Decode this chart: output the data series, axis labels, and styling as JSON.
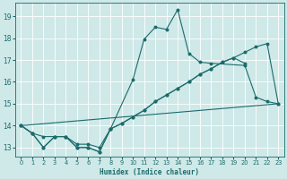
{
  "background_color": "#cfe8e8",
  "grid_color": "#ffffff",
  "line_color": "#1a6b6b",
  "xlabel": "Humidex (Indice chaleur)",
  "yticks": [
    13,
    14,
    15,
    16,
    17,
    18,
    19
  ],
  "xticks": [
    0,
    1,
    2,
    3,
    4,
    5,
    6,
    7,
    8,
    9,
    10,
    11,
    12,
    13,
    14,
    15,
    16,
    17,
    18,
    19,
    20,
    21,
    22,
    23
  ],
  "xlim": [
    -0.5,
    23.5
  ],
  "ylim": [
    12.6,
    19.6
  ],
  "line1_x": [
    0,
    1,
    2,
    3,
    4,
    5,
    6,
    7,
    8,
    10,
    11,
    12,
    13,
    14,
    15,
    16,
    17,
    20,
    21,
    22,
    23
  ],
  "line1_y": [
    14.0,
    13.65,
    13.0,
    13.5,
    13.5,
    13.0,
    13.0,
    12.8,
    13.85,
    16.1,
    17.95,
    18.5,
    18.4,
    19.3,
    17.3,
    16.9,
    16.85,
    16.75,
    15.3,
    15.1,
    15.0
  ],
  "line2_x": [
    0,
    1,
    2,
    3,
    4,
    5,
    6,
    7,
    8,
    9,
    10,
    11,
    12,
    13,
    14,
    15,
    16,
    17,
    18,
    19,
    20,
    21,
    22,
    23
  ],
  "line2_y": [
    14.0,
    13.65,
    13.0,
    13.5,
    13.5,
    13.0,
    13.0,
    12.8,
    13.85,
    14.1,
    14.4,
    14.7,
    15.1,
    15.4,
    15.7,
    16.0,
    16.35,
    16.6,
    16.9,
    17.1,
    17.35,
    17.6,
    17.75,
    15.0
  ],
  "line3_x": [
    0,
    23
  ],
  "line3_y": [
    14.0,
    15.0
  ],
  "line4_x": [
    0,
    1,
    2,
    3,
    4,
    5,
    6,
    7,
    8,
    9,
    10,
    11,
    12,
    13,
    14,
    15,
    16,
    17,
    18,
    19,
    20
  ],
  "line4_y": [
    14.0,
    13.65,
    13.5,
    13.5,
    13.5,
    13.15,
    13.15,
    13.0,
    13.85,
    14.1,
    14.4,
    14.7,
    15.1,
    15.4,
    15.7,
    16.0,
    16.35,
    16.6,
    16.9,
    17.1,
    16.85
  ]
}
